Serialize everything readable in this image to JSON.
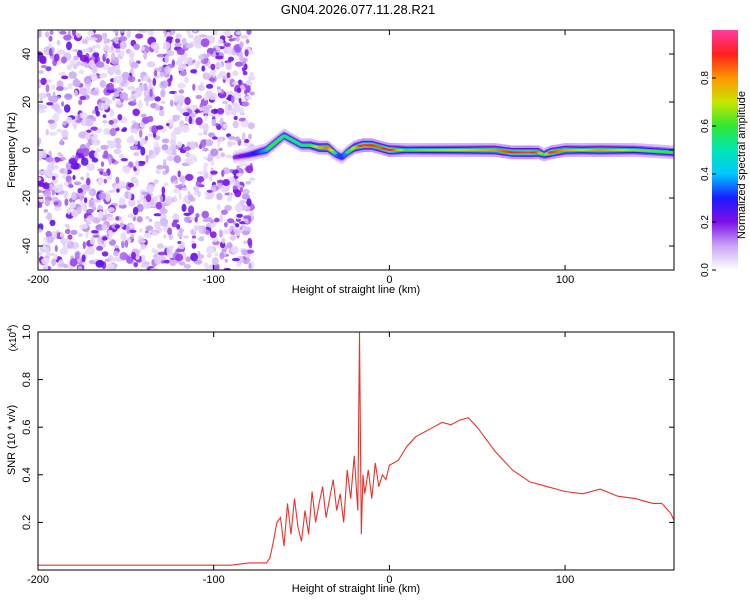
{
  "title": "GN04.2026.077.11.28.R21",
  "chart_data": [
    {
      "type": "heatmap",
      "name": "spectrogram",
      "title": "GN04.2026.077.11.28.R21",
      "xlabel": "Height of straight line (km)",
      "ylabel": "Frequency (Hz)",
      "xlim": [
        -200,
        162
      ],
      "ylim": [
        -50,
        50
      ],
      "xticks": [
        -200,
        -100,
        0,
        100
      ],
      "xtick_labels": [
        "-200",
        "-100",
        "0",
        "100"
      ],
      "yticks": [
        -40,
        -20,
        0,
        20,
        40
      ],
      "ytick_labels": [
        "-40",
        "-20",
        "0",
        "20",
        "40"
      ],
      "noise_region_x": [
        -200,
        -78
      ],
      "signal_region_x": [
        -78,
        162
      ],
      "ridge": {
        "x": [
          -88,
          -80,
          -75,
          -70,
          -65,
          -60,
          -55,
          -50,
          -45,
          -40,
          -35,
          -30,
          -27,
          -24,
          -20,
          -15,
          -10,
          -5,
          0,
          10,
          20,
          40,
          60,
          70,
          80,
          85,
          88,
          92,
          100,
          110,
          120,
          140,
          162
        ],
        "freq": [
          -3,
          -2,
          -1,
          0,
          3,
          6,
          4,
          2,
          2,
          1,
          1,
          -2,
          -3,
          -1,
          1,
          2,
          2,
          1,
          0,
          0,
          0,
          0,
          0,
          -1,
          -1,
          -1,
          -2,
          -1,
          0,
          0,
          0,
          0,
          -1
        ],
        "amp": [
          0.25,
          0.35,
          0.45,
          0.55,
          0.6,
          0.55,
          0.55,
          0.55,
          0.6,
          0.75,
          0.85,
          0.5,
          0.45,
          0.55,
          0.7,
          0.95,
          0.9,
          0.85,
          0.95,
          0.6,
          0.65,
          0.7,
          0.8,
          0.9,
          0.95,
          0.85,
          0.55,
          0.9,
          0.8,
          0.7,
          0.8,
          0.65,
          0.6
        ]
      },
      "colorbar": {
        "label": "Normalized spectral amplitude",
        "range": [
          0,
          1
        ],
        "ticks": [
          0,
          0.2,
          0.4,
          0.6,
          0.8
        ],
        "tick_labels": [
          "0.0",
          "0.2",
          "0.4",
          "0.6",
          "0.8"
        ],
        "stops": [
          {
            "value": 0.0,
            "color": "#ffffff"
          },
          {
            "value": 0.1,
            "color": "#c9a6f5"
          },
          {
            "value": 0.2,
            "color": "#7f10e6"
          },
          {
            "value": 0.3,
            "color": "#1a1aff"
          },
          {
            "value": 0.4,
            "color": "#00c8ff"
          },
          {
            "value": 0.5,
            "color": "#00e6b4"
          },
          {
            "value": 0.6,
            "color": "#33e633"
          },
          {
            "value": 0.7,
            "color": "#c8e600"
          },
          {
            "value": 0.8,
            "color": "#ff9600"
          },
          {
            "value": 0.9,
            "color": "#ff1e1e"
          },
          {
            "value": 1.0,
            "color": "#ff3ca0"
          }
        ]
      }
    },
    {
      "type": "line",
      "name": "snr",
      "xlabel": "Height of straight line (km)",
      "ylabel": "SNR (10 * v/v)",
      "y_multiplier": "(x10",
      "y_multiplier_exp": "4",
      "y_multiplier_close": ")",
      "xlim": [
        -200,
        162
      ],
      "ylim": [
        0,
        1.0
      ],
      "xticks": [
        -200,
        -100,
        0,
        100
      ],
      "xtick_labels": [
        "-200",
        "-100",
        "0",
        "100"
      ],
      "yticks": [
        0.2,
        0.4,
        0.6,
        0.8,
        1.0
      ],
      "ytick_labels": [
        "0.2",
        "0.4",
        "0.6",
        "0.8",
        "1.0"
      ],
      "line_color": "#e8332c",
      "series": [
        {
          "name": "SNR",
          "x": [
            -200,
            -180,
            -160,
            -140,
            -120,
            -100,
            -90,
            -80,
            -75,
            -70,
            -68,
            -66,
            -64,
            -62,
            -60,
            -58,
            -56,
            -54,
            -52,
            -50,
            -48,
            -46,
            -44,
            -42,
            -40,
            -38,
            -36,
            -34,
            -32,
            -30,
            -28,
            -26,
            -24,
            -22,
            -20,
            -18,
            -17,
            -16,
            -15,
            -14,
            -12,
            -10,
            -8,
            -6,
            -4,
            -2,
            0,
            5,
            10,
            15,
            20,
            25,
            30,
            35,
            40,
            45,
            50,
            55,
            60,
            65,
            70,
            80,
            90,
            100,
            110,
            120,
            130,
            140,
            150,
            155,
            160,
            162
          ],
          "y": [
            0.02,
            0.02,
            0.02,
            0.02,
            0.02,
            0.02,
            0.02,
            0.03,
            0.03,
            0.03,
            0.05,
            0.12,
            0.2,
            0.22,
            0.1,
            0.28,
            0.15,
            0.3,
            0.18,
            0.12,
            0.25,
            0.15,
            0.33,
            0.2,
            0.28,
            0.35,
            0.22,
            0.3,
            0.38,
            0.25,
            0.32,
            0.2,
            0.42,
            0.3,
            0.48,
            0.25,
            1.0,
            0.15,
            0.4,
            0.32,
            0.42,
            0.3,
            0.45,
            0.35,
            0.4,
            0.38,
            0.44,
            0.46,
            0.52,
            0.56,
            0.58,
            0.6,
            0.62,
            0.61,
            0.63,
            0.64,
            0.6,
            0.55,
            0.5,
            0.46,
            0.42,
            0.37,
            0.35,
            0.33,
            0.32,
            0.34,
            0.31,
            0.3,
            0.28,
            0.28,
            0.24,
            0.21
          ]
        }
      ]
    }
  ]
}
